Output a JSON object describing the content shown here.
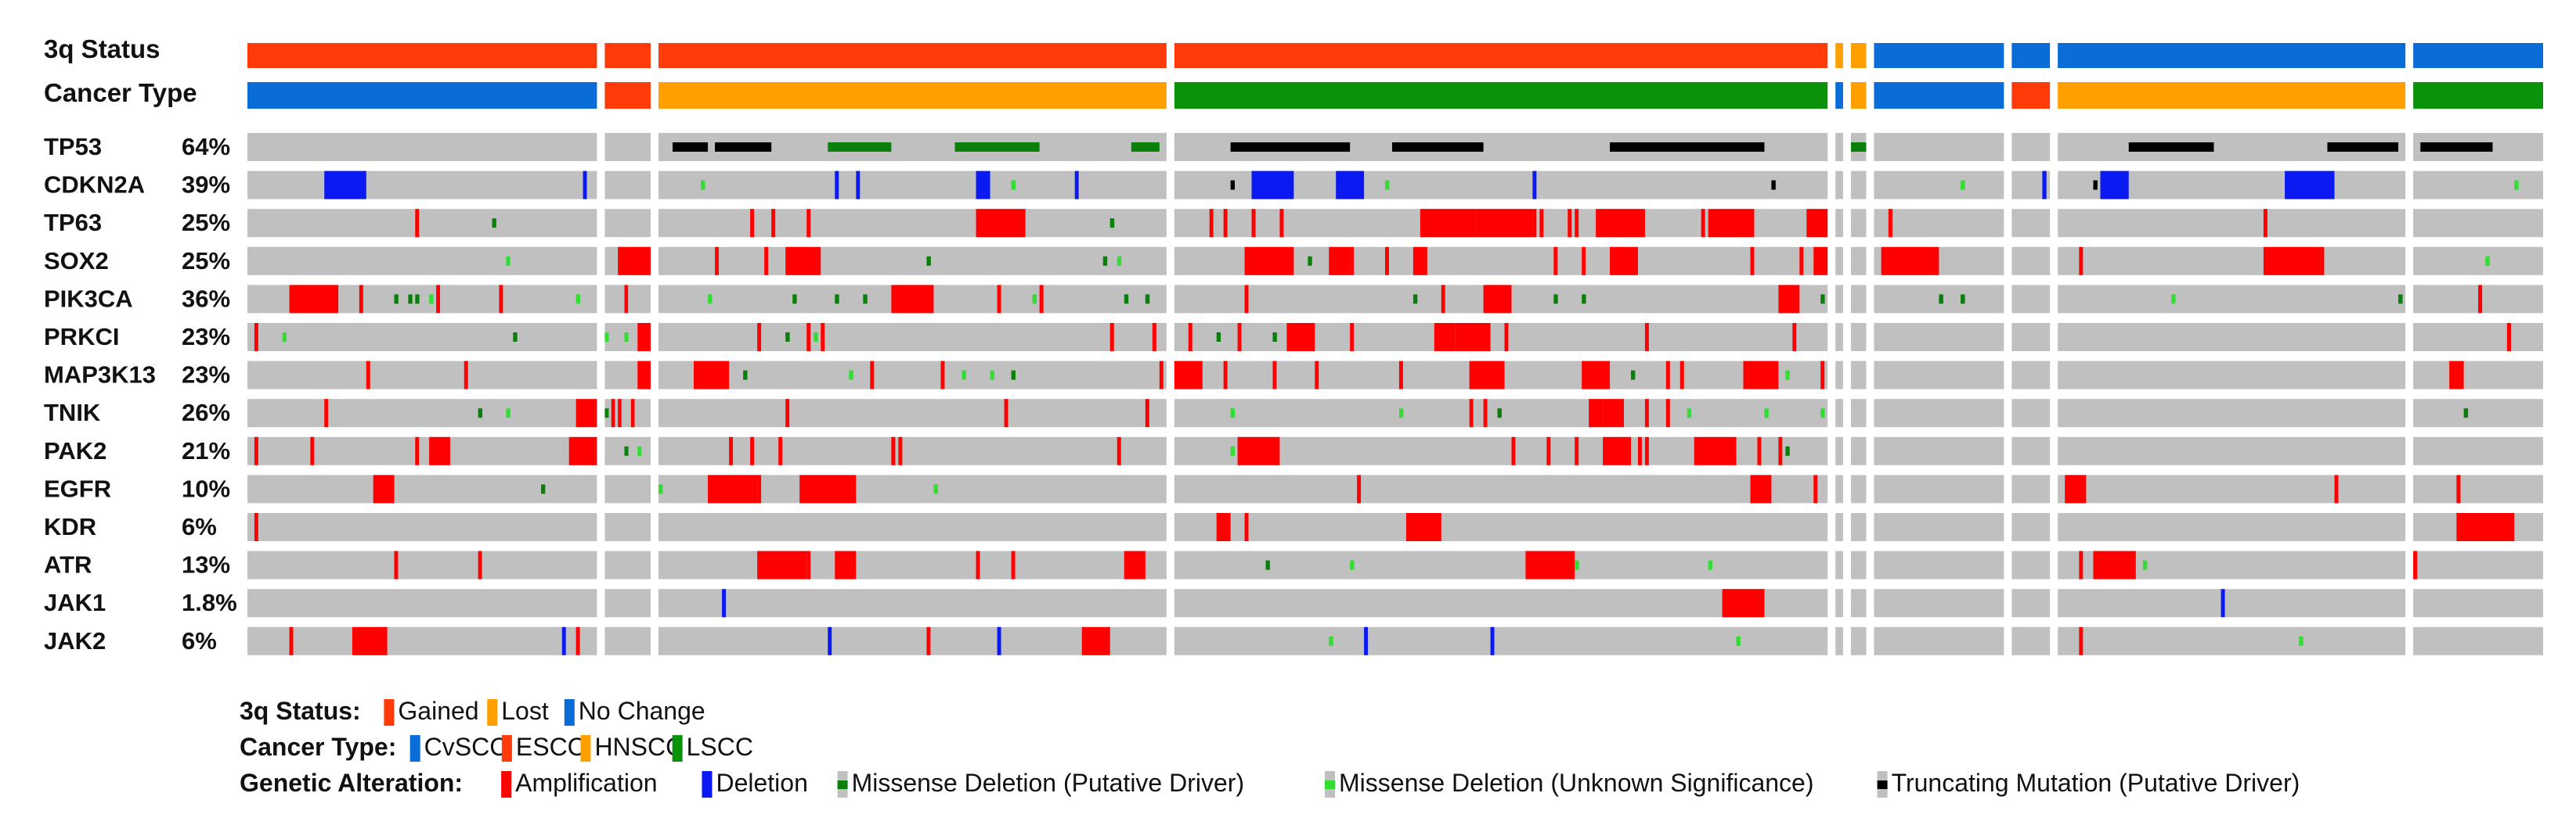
{
  "colors": {
    "gained": "#FF3B0A",
    "lost": "#FFA000",
    "no_change": "#0A6CD6",
    "cvscc": "#0A6CD6",
    "escc": "#FF3B0A",
    "hnscc": "#FFA000",
    "lscc": "#0A920A",
    "background": "#C0C0C0",
    "amplification": "#FF0000",
    "deletion": "#0A1AF0",
    "missense_driver": "#0A800A",
    "missense_unknown": "#33DD33",
    "truncating": "#000000"
  },
  "chart_data": {
    "type": "oncoprint",
    "track_labels": {
      "status": "3q Status",
      "cancer_type": "Cancer Type"
    },
    "groups": [
      {
        "status": "gained",
        "cancer_type": "cvscc",
        "weight": 9.15
      },
      {
        "status": "gained",
        "cancer_type": "escc",
        "weight": 1.2
      },
      {
        "status": "gained",
        "cancer_type": "hnscc",
        "weight": 13.3
      },
      {
        "status": "gained",
        "cancer_type": "lscc",
        "weight": 17.1
      },
      {
        "status": "lost",
        "cancer_type": "cvscc",
        "weight": 0.2
      },
      {
        "status": "lost",
        "cancer_type": "hnscc",
        "weight": 0.4
      },
      {
        "status": "no_change",
        "cancer_type": "cvscc",
        "weight": 3.4
      },
      {
        "status": "no_change",
        "cancer_type": "escc",
        "weight": 1.0
      },
      {
        "status": "no_change",
        "cancer_type": "hnscc",
        "weight": 9.1
      },
      {
        "status": "no_change",
        "cancer_type": "lscc",
        "weight": 3.4
      }
    ],
    "genes": [
      {
        "name": "TP53",
        "pct": "64%"
      },
      {
        "name": "CDKN2A",
        "pct": "39%"
      },
      {
        "name": "TP63",
        "pct": "25%"
      },
      {
        "name": "SOX2",
        "pct": "25%"
      },
      {
        "name": "PIK3CA",
        "pct": "36%"
      },
      {
        "name": "PRKCI",
        "pct": "23%"
      },
      {
        "name": "MAP3K13",
        "pct": "23%"
      },
      {
        "name": "TNIK",
        "pct": "26%"
      },
      {
        "name": "PAK2",
        "pct": "21%"
      },
      {
        "name": "EGFR",
        "pct": "10%"
      },
      {
        "name": "KDR",
        "pct": "6%"
      },
      {
        "name": "ATR",
        "pct": "13%"
      },
      {
        "name": "JAK1",
        "pct": "1.8%"
      },
      {
        "name": "JAK2",
        "pct": "6%"
      }
    ],
    "alteration_density": [
      [
        0.04,
        0.1,
        0.12,
        0.12,
        0.05,
        0.05,
        0.05,
        0.05,
        0.06,
        0.04
      ],
      [
        0.05,
        0.06,
        0.06,
        0.06,
        0.05,
        0.06,
        0.05,
        0.04,
        0.04,
        0.06
      ],
      [
        0.06,
        0.16,
        0.1,
        0.14,
        0.06,
        0.06,
        0.03,
        0.0,
        0.02,
        0.0
      ],
      [
        0.05,
        0.16,
        0.1,
        0.14,
        0.06,
        0.06,
        0.03,
        0.0,
        0.02,
        0.05
      ],
      [
        0.1,
        0.16,
        0.12,
        0.16,
        0.06,
        0.06,
        0.1,
        0.15,
        0.05,
        0.02
      ],
      [
        0.06,
        0.16,
        0.1,
        0.14,
        0.06,
        0.06,
        0.04,
        0.0,
        0.01,
        0.04
      ],
      [
        0.06,
        0.16,
        0.1,
        0.14,
        0.06,
        0.06,
        0.03,
        0.0,
        0.01,
        0.02
      ],
      [
        0.08,
        0.16,
        0.1,
        0.14,
        0.06,
        0.06,
        0.04,
        0.05,
        0.02,
        0.03
      ],
      [
        0.06,
        0.16,
        0.1,
        0.14,
        0.06,
        0.06,
        0.02,
        0.05,
        0.03,
        0.0
      ],
      [
        0.03,
        0.16,
        0.05,
        0.05,
        0.0,
        0.0,
        0.02,
        0.05,
        0.04,
        0.05
      ],
      [
        0.02,
        0.0,
        0.03,
        0.04,
        0.0,
        0.0,
        0.0,
        0.04,
        0.02,
        0.06
      ],
      [
        0.05,
        0.06,
        0.06,
        0.07,
        0.0,
        0.0,
        0.01,
        0.06,
        0.02,
        0.02
      ],
      [
        0.0,
        0.0,
        0.01,
        0.02,
        0.0,
        0.0,
        0.01,
        0.0,
        0.01,
        0.0
      ],
      [
        0.03,
        0.02,
        0.04,
        0.05,
        0.0,
        0.0,
        0.03,
        0.02,
        0.02,
        0.02
      ]
    ],
    "legend": {
      "status": {
        "title": "3q Status:",
        "items": [
          {
            "label": "Gained",
            "color_key": "gained"
          },
          {
            "label": "Lost",
            "color_key": "lost"
          },
          {
            "label": "No Change",
            "color_key": "no_change"
          }
        ]
      },
      "cancer_type": {
        "title": "Cancer Type:",
        "items": [
          {
            "label": "CvSCC",
            "color_key": "cvscc"
          },
          {
            "label": "ESCC",
            "color_key": "escc"
          },
          {
            "label": "HNSCC",
            "color_key": "hnscc"
          },
          {
            "label": "LSCC",
            "color_key": "lscc"
          }
        ]
      },
      "alteration": {
        "title": "Genetic Alteration:",
        "items": [
          {
            "label": "Amplification",
            "glyph": "amplification"
          },
          {
            "label": "Deletion",
            "glyph": "deletion"
          },
          {
            "label": "Missense Deletion (Putative Driver)",
            "glyph": "missense_driver"
          },
          {
            "label": "Missense Deletion (Unknown Significance)",
            "glyph": "missense_unknown"
          },
          {
            "label": "Truncating Mutation (Putative Driver)",
            "glyph": "truncating"
          }
        ]
      }
    }
  }
}
